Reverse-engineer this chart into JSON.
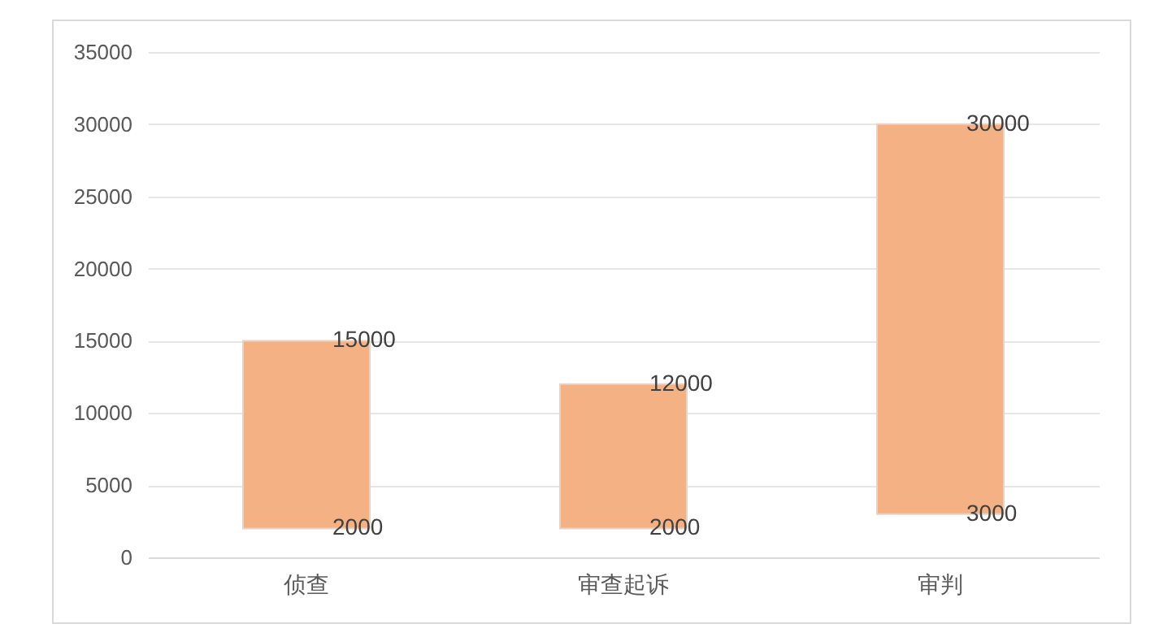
{
  "chart_data": {
    "type": "bar",
    "categories": [
      "侦查",
      "审查起诉",
      "审判"
    ],
    "values": [
      13000,
      10000,
      27000
    ],
    "base": [
      2000,
      2000,
      3000
    ],
    "color": "#f4b183",
    "ylim": [
      0,
      35000
    ],
    "yticks": [
      0,
      5000,
      10000,
      15000,
      20000,
      25000,
      30000,
      35000
    ],
    "grid": true,
    "annotations": [
      {
        "text": "15000",
        "x": "侦查",
        "y": 15000
      },
      {
        "text": "2000",
        "x": "侦查",
        "y": 2000
      },
      {
        "text": "12000",
        "x": "审查起诉",
        "y": 12000
      },
      {
        "text": "2000",
        "x": "审查起诉",
        "y": 2000
      },
      {
        "text": "30000",
        "x": "审判",
        "y": 30000
      },
      {
        "text": "3000",
        "x": "审判",
        "y": 3000
      }
    ]
  }
}
